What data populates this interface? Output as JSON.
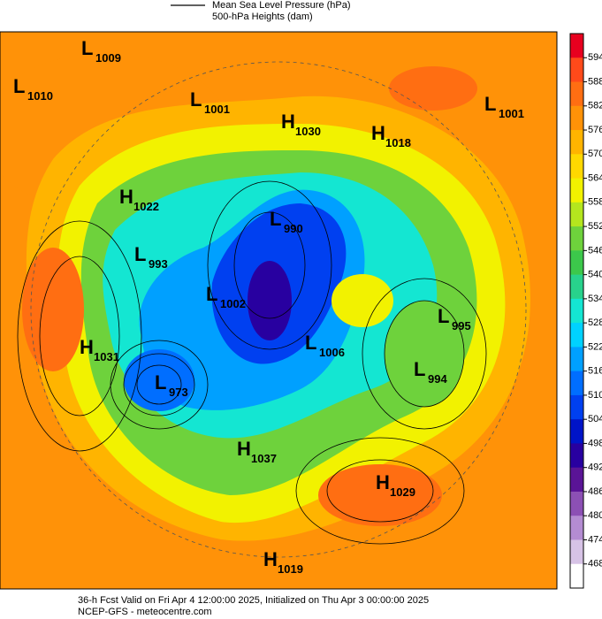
{
  "legend": [
    "Mean Sea Level Pressure (hPa)",
    "500-hPa Heights (dam)"
  ],
  "centers": [
    {
      "letter": "L",
      "value": 1009
    },
    {
      "letter": "L",
      "value": 1010
    },
    {
      "letter": "L",
      "value": 1001
    },
    {
      "letter": "H",
      "value": 1030
    },
    {
      "letter": "H",
      "value": 1018
    },
    {
      "letter": "L",
      "value": 1001
    },
    {
      "letter": "H",
      "value": 1022
    },
    {
      "letter": "L",
      "value": 990
    },
    {
      "letter": "L",
      "value": 993
    },
    {
      "letter": "L",
      "value": 1002
    },
    {
      "letter": "L",
      "value": 995
    },
    {
      "letter": "H",
      "value": 1031
    },
    {
      "letter": "L",
      "value": 1006
    },
    {
      "letter": "L",
      "value": 994
    },
    {
      "letter": "L",
      "value": 973
    },
    {
      "letter": "H",
      "value": 1037
    },
    {
      "letter": "H",
      "value": 1029
    },
    {
      "letter": "H",
      "value": 1019
    }
  ],
  "colorbar": {
    "levels": [
      594,
      588,
      582,
      576,
      570,
      564,
      558,
      552,
      546,
      540,
      534,
      528,
      522,
      516,
      510,
      504,
      498,
      492,
      486,
      480,
      474,
      468
    ],
    "colors": [
      "#e8001f",
      "#ff4a1a",
      "#ff6e12",
      "#ff9208",
      "#ffb400",
      "#ffd800",
      "#f2f200",
      "#b4e61e",
      "#6ed23c",
      "#3cc84b",
      "#28d28c",
      "#14e6d2",
      "#00d2ff",
      "#00a0ff",
      "#006eff",
      "#0040f0",
      "#0014c8",
      "#2800a0",
      "#5a1496",
      "#8c50b4",
      "#b48cd2",
      "#d7c3e6",
      "#ffffff"
    ]
  },
  "footer": [
    "36-h Fcst Valid on Fri Apr  4 12:00:00 2025, Initialized on Thu Apr  3 00:00:00 2025",
    "NCEP-GFS - meteocentre.com"
  ]
}
